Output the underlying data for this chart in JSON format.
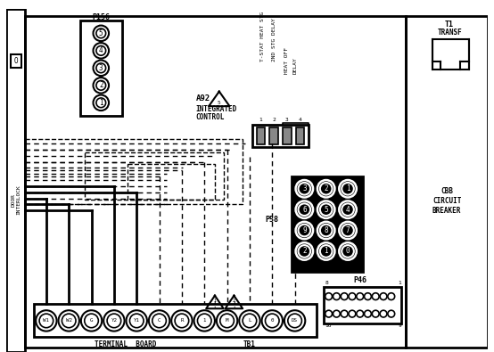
{
  "bg_color": "#ffffff",
  "line_color": "#000000",
  "fig_width": 5.54,
  "fig_height": 3.95,
  "dpi": 100,
  "p156_pins": [
    "5",
    "4",
    "3",
    "2",
    "1"
  ],
  "p58_labels": [
    [
      "3",
      "2",
      "1"
    ],
    [
      "6",
      "5",
      "4"
    ],
    [
      "9",
      "8",
      "7"
    ],
    [
      "2",
      "1",
      "0"
    ]
  ],
  "tb1_labels": [
    "W1",
    "W2",
    "G",
    "Y2",
    "Y1",
    "C",
    "R",
    "1",
    "M",
    "L",
    "0",
    "DS"
  ]
}
